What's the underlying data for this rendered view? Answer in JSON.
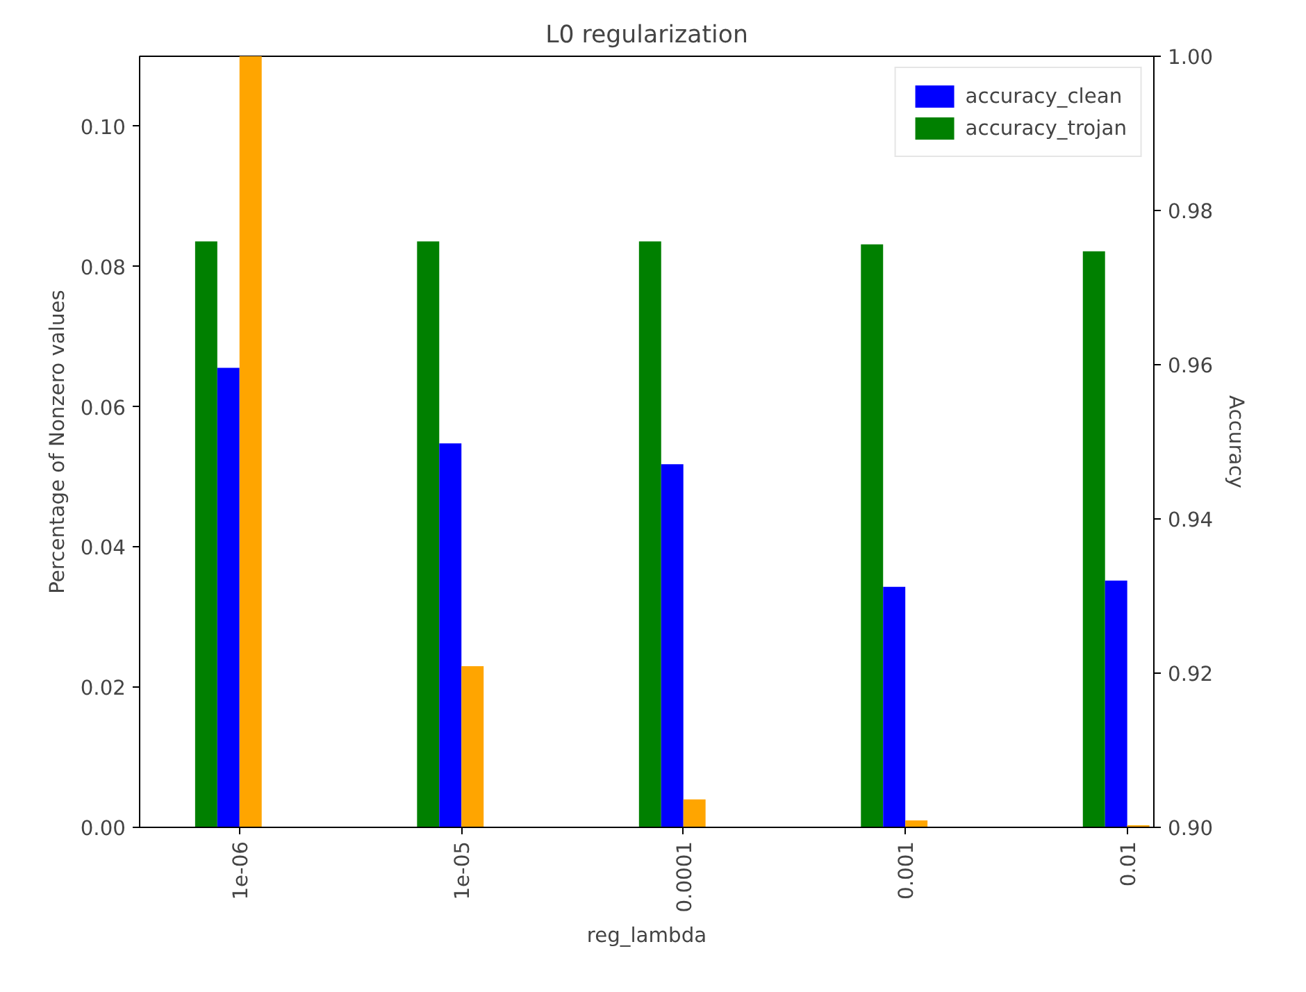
{
  "chart_data": {
    "type": "bar",
    "title": "L0 regularization",
    "xlabel": "reg_lambda",
    "ylabel": "Percentage of Nonzero values",
    "y2label": "Accuracy",
    "categories": [
      "1e-06",
      "1e-05",
      "0.0001",
      "0.001",
      "0.01"
    ],
    "series": [
      {
        "name": "accuracy_trojan",
        "color": "#008000",
        "axis": "y2",
        "values": [
          0.976,
          0.976,
          0.976,
          0.9756,
          0.9747
        ]
      },
      {
        "name": "accuracy_clean",
        "color": "#0000ff",
        "axis": "y2",
        "values": [
          0.9596,
          0.9498,
          0.9471,
          0.9312,
          0.932
        ]
      },
      {
        "color": "#ffa500",
        "values": [
          0.11,
          0.023,
          0.004,
          0.001,
          0.0003
        ]
      }
    ],
    "ylim": [
      0,
      0.11
    ],
    "yticks": [
      {
        "value": 0,
        "label": "0.00"
      },
      {
        "value": 0.02,
        "label": "0.02"
      },
      {
        "value": 0.04,
        "label": "0.04"
      },
      {
        "value": 0.06,
        "label": "0.06"
      },
      {
        "value": 0.08,
        "label": "0.08"
      },
      {
        "value": 0.1,
        "label": "0.10"
      }
    ],
    "y2lim": [
      0.9,
      1.0
    ],
    "y2ticks": [
      {
        "value": 0.9,
        "label": "0.90"
      },
      {
        "value": 0.92,
        "label": "0.92"
      },
      {
        "value": 0.94,
        "label": "0.94"
      },
      {
        "value": 0.96,
        "label": "0.96"
      },
      {
        "value": 0.98,
        "label": "0.98"
      },
      {
        "value": 1.0,
        "label": "1.00"
      }
    ],
    "legend": "top right",
    "grid": false
  }
}
